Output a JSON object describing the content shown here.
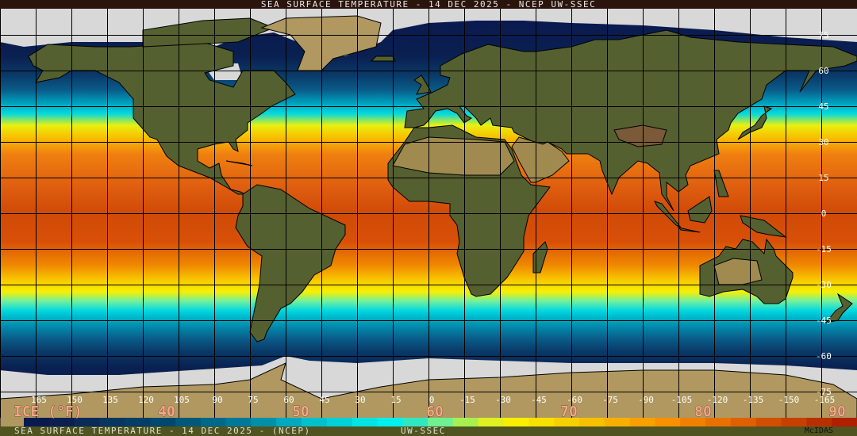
{
  "header": {
    "title": "SEA SURFACE TEMPERATURE - 14 DEC 2025 - NCEP UW-SSEC"
  },
  "footer": {
    "title": "SEA SURFACE TEMPERATURE - 14 DEC 2025 - (NCEP)",
    "source": "UW-SSEC",
    "software": "McIDAS"
  },
  "map": {
    "projection": "equirectangular",
    "longitude_labels": [
      "165",
      "150",
      "135",
      "120",
      "105",
      "90",
      "75",
      "60",
      "45",
      "30",
      "15",
      "0",
      "-15",
      "-30",
      "-45",
      "-60",
      "-75",
      "-90",
      "-105",
      "-120",
      "-135",
      "-150",
      "-165"
    ],
    "latitude_labels": [
      "75",
      "60",
      "45",
      "30",
      "15",
      "0",
      "-15",
      "-30",
      "-45",
      "-60",
      "-75"
    ],
    "colors": {
      "land": "#556030",
      "desert": "#a08a50",
      "ice": "#d8d8d8",
      "coast": "#000000",
      "grid": "#000000"
    }
  },
  "legend": {
    "unit_label": "ICE (°F)",
    "ticks": [
      "40",
      "50",
      "60",
      "70",
      "80",
      "90"
    ],
    "colors": [
      "#0a1a50",
      "#0a2050",
      "#0a2a5a",
      "#073660",
      "#033e66",
      "#00486e",
      "#005878",
      "#006888",
      "#007898",
      "#0090a8",
      "#00a8c0",
      "#00c0cc",
      "#00d0d8",
      "#00e4e4",
      "#00f0f0",
      "#30e8c0",
      "#70f090",
      "#a8f050",
      "#e0f020",
      "#f8f000",
      "#f8e000",
      "#f8d000",
      "#f8c000",
      "#f8b000",
      "#f8a000",
      "#f89000",
      "#f08000",
      "#e87000",
      "#e06000",
      "#d05000",
      "#c84000",
      "#b83000",
      "#b02000"
    ]
  }
}
